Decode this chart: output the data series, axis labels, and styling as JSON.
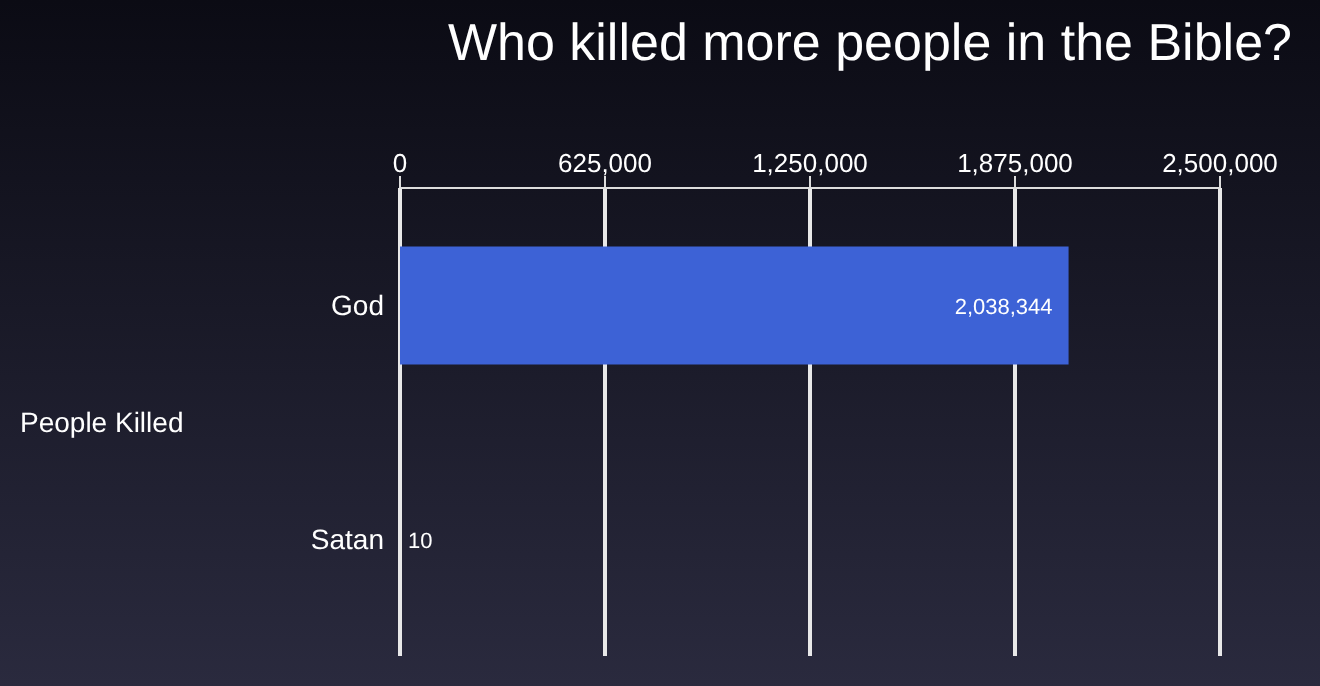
{
  "chart_data": {
    "type": "bar",
    "orientation": "horizontal",
    "title": "Who killed more people in the Bible?",
    "ylabel": "People Killed",
    "categories": [
      "God",
      "Satan"
    ],
    "values": [
      2038344,
      10
    ],
    "colors": [
      "#3d62d6",
      "#a3462c"
    ],
    "value_labels": [
      "2,038,344",
      "10"
    ],
    "xlim": [
      0,
      2500000
    ],
    "xticks": [
      0,
      {
        "value": 625000,
        "label": "625,000"
      },
      {
        "value": 1250000,
        "label": "1,250,000"
      },
      {
        "value": 1875000,
        "label": "1,875,000"
      },
      {
        "value": 2500000,
        "label": "2,500,000"
      }
    ],
    "grid": "x"
  }
}
